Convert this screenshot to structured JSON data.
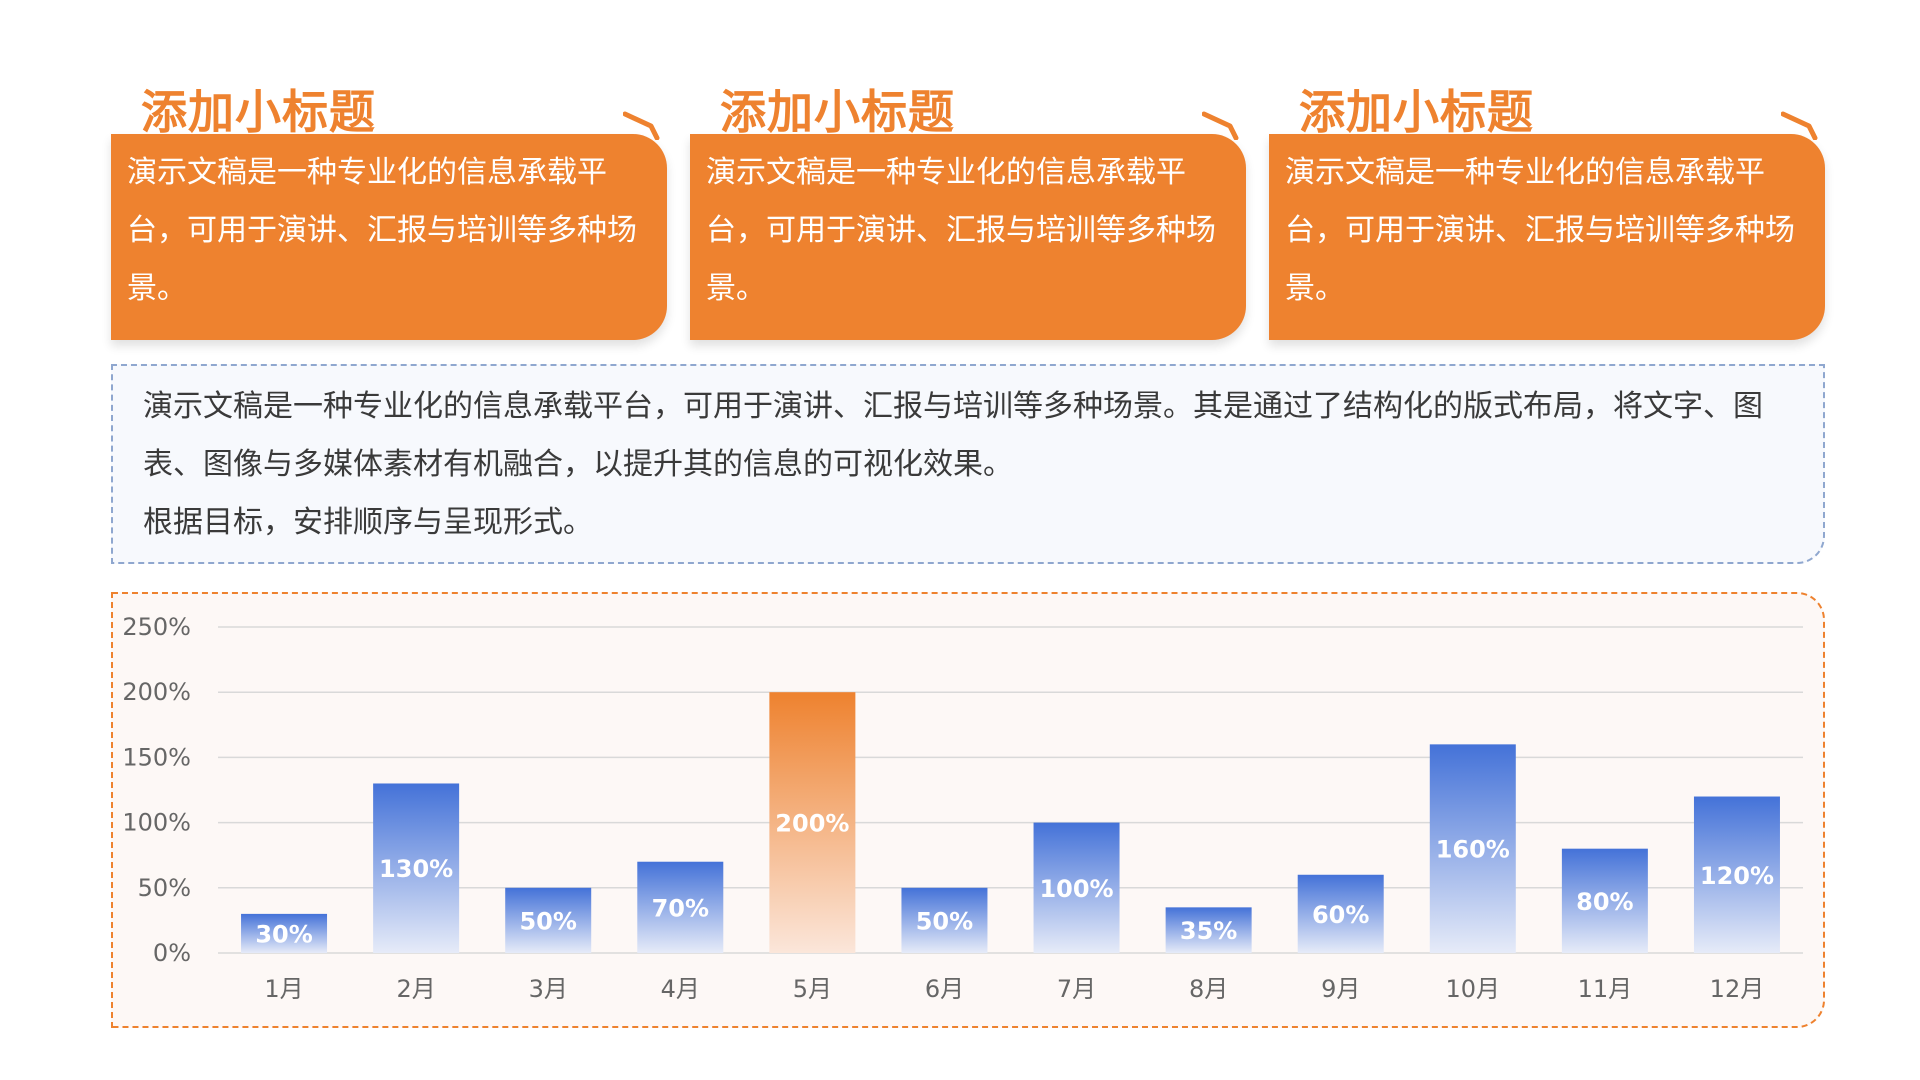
{
  "cards": [
    {
      "title": "添加小标题",
      "body": "演示文稿是一种专业化的信息承载平台，可用于演讲、汇报与培训等多种场景。"
    },
    {
      "title": "添加小标题",
      "body": "演示文稿是一种专业化的信息承载平台，可用于演讲、汇报与培训等多种场景。"
    },
    {
      "title": "添加小标题",
      "body": "演示文稿是一种专业化的信息承载平台，可用于演讲、汇报与培训等多种场景。"
    }
  ],
  "description": {
    "line1": "演示文稿是一种专业化的信息承载平台，可用于演讲、汇报与培训等多种场景。其是通过了结构化的版式布局，将文字、图表、图像与多媒体素材有机融合，以提升其的信息的可视化效果。",
    "line2": "根据目标，安排顺序与呈现形式。"
  },
  "colors": {
    "accent": "#ee822f",
    "bar_blue": "#4472d8",
    "bar_orange": "#ee822f"
  },
  "chart_data": {
    "type": "bar",
    "categories": [
      "1月",
      "2月",
      "3月",
      "4月",
      "5月",
      "6月",
      "7月",
      "8月",
      "9月",
      "10月",
      "11月",
      "12月"
    ],
    "values": [
      30,
      130,
      50,
      70,
      200,
      50,
      100,
      35,
      60,
      160,
      80,
      120
    ],
    "data_labels": [
      "30%",
      "130%",
      "50%",
      "70%",
      "200%",
      "50%",
      "100%",
      "35%",
      "60%",
      "160%",
      "80%",
      "120%"
    ],
    "highlight_index": 4,
    "ylim": [
      0,
      250
    ],
    "yticks": [
      0,
      50,
      100,
      150,
      200,
      250
    ],
    "ytick_labels": [
      "0%",
      "50%",
      "100%",
      "150%",
      "200%",
      "250%"
    ],
    "grid": true,
    "title": "",
    "xlabel": "",
    "ylabel": ""
  }
}
